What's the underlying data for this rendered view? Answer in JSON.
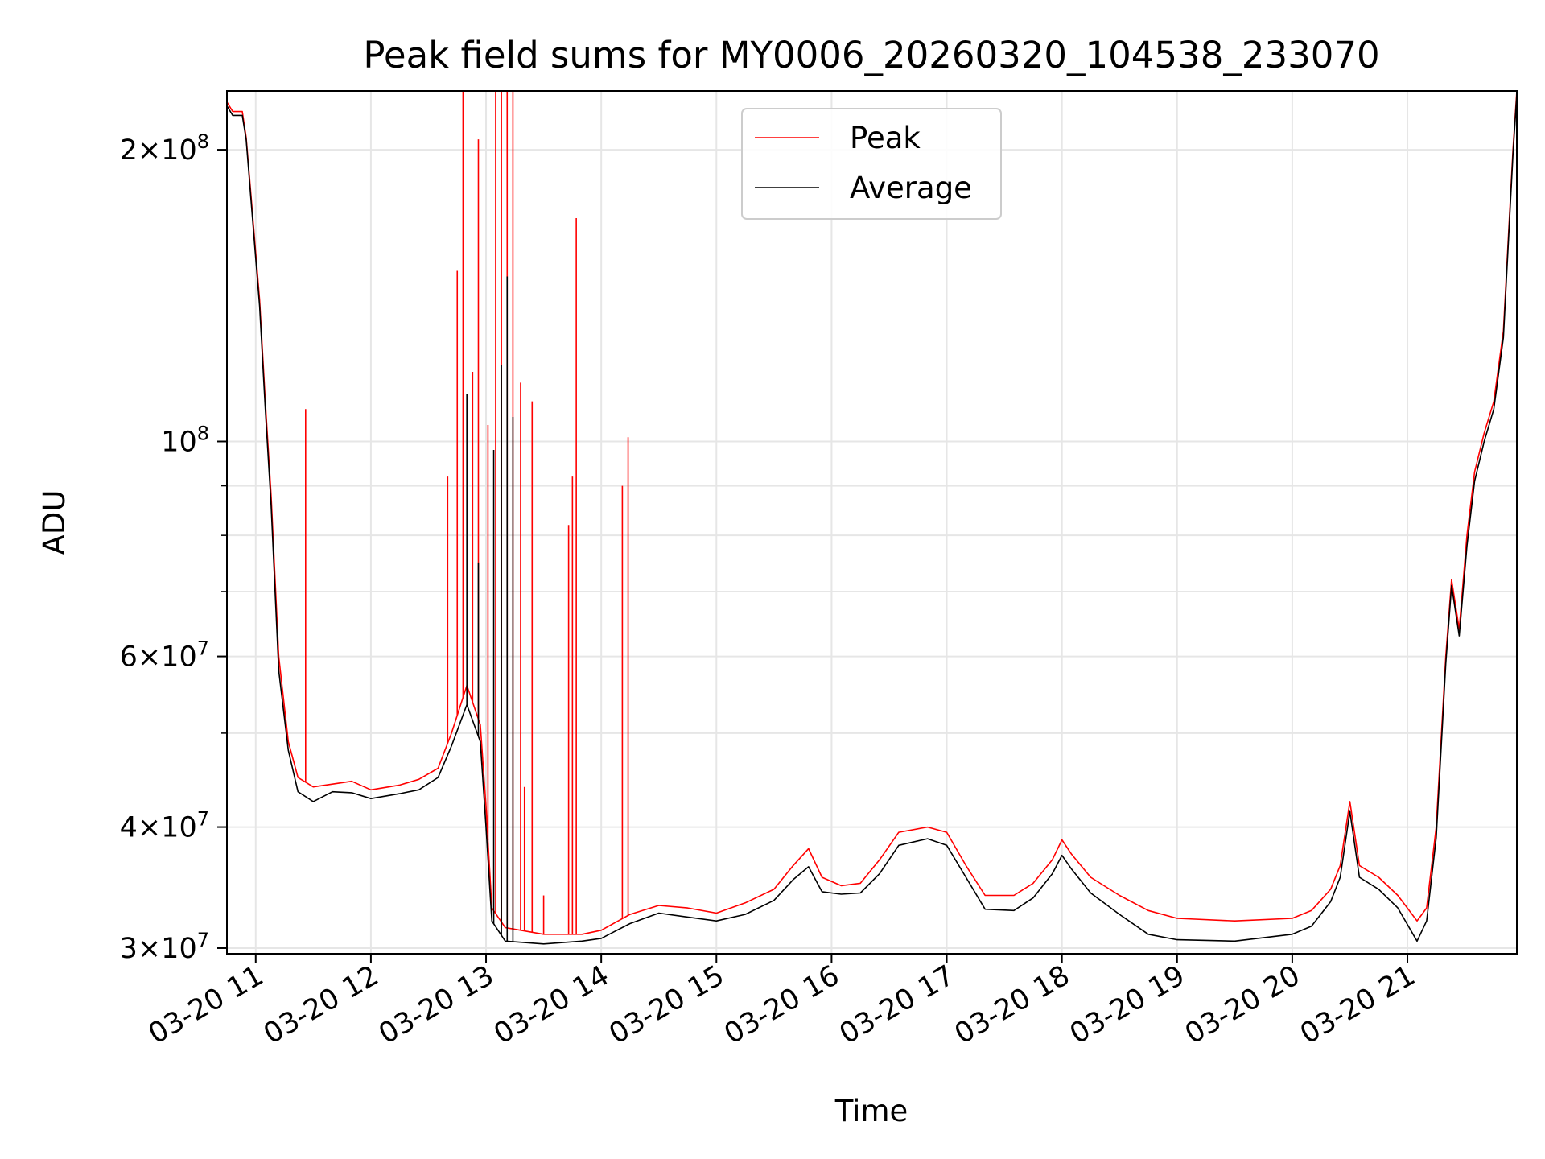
{
  "chart_data": {
    "type": "line",
    "title": "Peak field sums for MY0006_20260320_104538_233070",
    "xlabel": "Time",
    "ylabel": "ADU",
    "yscale": "log",
    "grid": true,
    "legend_position": "upper center",
    "xlim": [
      "03-20 10:45",
      "03-20 21:57"
    ],
    "ylim": [
      29600000,
      230000000
    ],
    "x_ticks": [
      {
        "value": "03-20 11:00",
        "label": "03-20 11"
      },
      {
        "value": "03-20 12:00",
        "label": "03-20 12"
      },
      {
        "value": "03-20 13:00",
        "label": "03-20 13"
      },
      {
        "value": "03-20 14:00",
        "label": "03-20 14"
      },
      {
        "value": "03-20 15:00",
        "label": "03-20 15"
      },
      {
        "value": "03-20 16:00",
        "label": "03-20 16"
      },
      {
        "value": "03-20 17:00",
        "label": "03-20 17"
      },
      {
        "value": "03-20 18:00",
        "label": "03-20 18"
      },
      {
        "value": "03-20 19:00",
        "label": "03-20 19"
      },
      {
        "value": "03-20 20:00",
        "label": "03-20 20"
      },
      {
        "value": "03-20 21:00",
        "label": "03-20 21"
      }
    ],
    "y_major_ticks": [
      {
        "value": 30000000,
        "mant": "3",
        "exp": "7"
      },
      {
        "value": 40000000,
        "mant": "4",
        "exp": "7"
      },
      {
        "value": 60000000,
        "mant": "6",
        "exp": "7"
      },
      {
        "value": 100000000,
        "mant": "",
        "exp": "8"
      },
      {
        "value": 200000000,
        "mant": "2",
        "exp": "8"
      }
    ],
    "y_minor_ticks": [
      50000000,
      70000000,
      80000000,
      90000000
    ],
    "series": [
      {
        "name": "Peak",
        "color": "#ff0000",
        "points": [
          [
            "03-20 10:45",
            224000000
          ],
          [
            "03-20 10:48",
            219000000
          ],
          [
            "03-20 10:53",
            219000000
          ],
          [
            "03-20 10:55",
            206000000
          ],
          [
            "03-20 10:58",
            175000000
          ],
          [
            "03-20 11:02",
            140000000
          ],
          [
            "03-20 11:05",
            110000000
          ],
          [
            "03-20 11:08",
            88000000
          ],
          [
            "03-20 11:12",
            60000000
          ],
          [
            "03-20 11:17",
            49000000
          ],
          [
            "03-20 11:22",
            45000000
          ],
          [
            "03-20 11:30",
            44000000
          ],
          [
            "03-20 11:40",
            44300000
          ],
          [
            "03-20 11:50",
            44600000
          ],
          [
            "03-20 12:00",
            43700000
          ],
          [
            "03-20 12:15",
            44200000
          ],
          [
            "03-20 12:25",
            44800000
          ],
          [
            "03-20 12:35",
            46000000
          ],
          [
            "03-20 12:42",
            50000000
          ],
          [
            "03-20 12:50",
            56000000
          ],
          [
            "03-20 12:57",
            51000000
          ],
          [
            "03-20 13:00",
            42000000
          ],
          [
            "03-20 13:03",
            33000000
          ],
          [
            "03-20 13:10",
            31500000
          ],
          [
            "03-20 13:30",
            31000000
          ],
          [
            "03-20 13:50",
            31000000
          ],
          [
            "03-20 14:00",
            31300000
          ],
          [
            "03-20 14:15",
            32500000
          ],
          [
            "03-20 14:30",
            33200000
          ],
          [
            "03-20 14:45",
            33000000
          ],
          [
            "03-20 15:00",
            32600000
          ],
          [
            "03-20 15:15",
            33400000
          ],
          [
            "03-20 15:30",
            34500000
          ],
          [
            "03-20 15:40",
            36500000
          ],
          [
            "03-20 15:48",
            38000000
          ],
          [
            "03-20 15:55",
            35500000
          ],
          [
            "03-20 16:05",
            34800000
          ],
          [
            "03-20 16:15",
            35000000
          ],
          [
            "03-20 16:25",
            37000000
          ],
          [
            "03-20 16:35",
            39500000
          ],
          [
            "03-20 16:50",
            40000000
          ],
          [
            "03-20 17:00",
            39500000
          ],
          [
            "03-20 17:10",
            36500000
          ],
          [
            "03-20 17:20",
            34000000
          ],
          [
            "03-20 17:35",
            34000000
          ],
          [
            "03-20 17:45",
            35000000
          ],
          [
            "03-20 17:55",
            37000000
          ],
          [
            "03-20 18:00",
            38800000
          ],
          [
            "03-20 18:05",
            37500000
          ],
          [
            "03-20 18:15",
            35500000
          ],
          [
            "03-20 18:30",
            34000000
          ],
          [
            "03-20 18:45",
            32800000
          ],
          [
            "03-20 19:00",
            32200000
          ],
          [
            "03-20 19:30",
            32000000
          ],
          [
            "03-20 20:00",
            32200000
          ],
          [
            "03-20 20:10",
            32800000
          ],
          [
            "03-20 20:20",
            34500000
          ],
          [
            "03-20 20:25",
            36500000
          ],
          [
            "03-20 20:30",
            42500000
          ],
          [
            "03-20 20:35",
            36500000
          ],
          [
            "03-20 20:45",
            35500000
          ],
          [
            "03-20 20:55",
            34000000
          ],
          [
            "03-20 21:05",
            32000000
          ],
          [
            "03-20 21:10",
            33000000
          ],
          [
            "03-20 21:15",
            40000000
          ],
          [
            "03-20 21:20",
            60000000
          ],
          [
            "03-20 21:23",
            72000000
          ],
          [
            "03-20 21:27",
            64000000
          ],
          [
            "03-20 21:31",
            80000000
          ],
          [
            "03-20 21:35",
            93000000
          ],
          [
            "03-20 21:40",
            102000000
          ],
          [
            "03-20 21:45",
            110000000
          ],
          [
            "03-20 21:50",
            130000000
          ],
          [
            "03-20 21:55",
            200000000
          ],
          [
            "03-20 21:57",
            230000000
          ]
        ],
        "spikes": [
          [
            "03-20 11:26",
            108000000
          ],
          [
            "03-20 12:40",
            92000000
          ],
          [
            "03-20 12:45",
            150000000
          ],
          [
            "03-20 12:48",
            230000000
          ],
          [
            "03-20 12:53",
            118000000
          ],
          [
            "03-20 12:56",
            205000000
          ],
          [
            "03-20 13:01",
            104000000
          ],
          [
            "03-20 13:05",
            230000000
          ],
          [
            "03-20 13:08",
            230000000
          ],
          [
            "03-20 13:11",
            230000000
          ],
          [
            "03-20 13:14",
            230000000
          ],
          [
            "03-20 13:18",
            115000000
          ],
          [
            "03-20 13:20",
            44000000
          ],
          [
            "03-20 13:24",
            110000000
          ],
          [
            "03-20 13:30",
            34000000
          ],
          [
            "03-20 13:43",
            82000000
          ],
          [
            "03-20 13:45",
            92000000
          ],
          [
            "03-20 13:47",
            170000000
          ],
          [
            "03-20 14:11",
            90000000
          ],
          [
            "03-20 14:14",
            101000000
          ]
        ]
      },
      {
        "name": "Average",
        "color": "#000000",
        "points": [
          [
            "03-20 10:45",
            222000000
          ],
          [
            "03-20 10:48",
            217000000
          ],
          [
            "03-20 10:53",
            217000000
          ],
          [
            "03-20 10:55",
            205000000
          ],
          [
            "03-20 10:58",
            173000000
          ],
          [
            "03-20 11:02",
            138000000
          ],
          [
            "03-20 11:05",
            108000000
          ],
          [
            "03-20 11:08",
            86000000
          ],
          [
            "03-20 11:12",
            58000000
          ],
          [
            "03-20 11:17",
            48000000
          ],
          [
            "03-20 11:22",
            43500000
          ],
          [
            "03-20 11:30",
            42500000
          ],
          [
            "03-20 11:40",
            43500000
          ],
          [
            "03-20 11:50",
            43400000
          ],
          [
            "03-20 12:00",
            42800000
          ],
          [
            "03-20 12:15",
            43300000
          ],
          [
            "03-20 12:25",
            43700000
          ],
          [
            "03-20 12:35",
            45000000
          ],
          [
            "03-20 12:42",
            48500000
          ],
          [
            "03-20 12:50",
            53500000
          ],
          [
            "03-20 12:57",
            49000000
          ],
          [
            "03-20 13:00",
            40000000
          ],
          [
            "03-20 13:03",
            32000000
          ],
          [
            "03-20 13:10",
            30500000
          ],
          [
            "03-20 13:30",
            30300000
          ],
          [
            "03-20 13:50",
            30500000
          ],
          [
            "03-20 14:00",
            30700000
          ],
          [
            "03-20 14:15",
            31800000
          ],
          [
            "03-20 14:30",
            32600000
          ],
          [
            "03-20 14:45",
            32300000
          ],
          [
            "03-20 15:00",
            32000000
          ],
          [
            "03-20 15:15",
            32500000
          ],
          [
            "03-20 15:30",
            33600000
          ],
          [
            "03-20 15:40",
            35300000
          ],
          [
            "03-20 15:48",
            36400000
          ],
          [
            "03-20 15:55",
            34300000
          ],
          [
            "03-20 16:05",
            34100000
          ],
          [
            "03-20 16:15",
            34200000
          ],
          [
            "03-20 16:25",
            35800000
          ],
          [
            "03-20 16:35",
            38300000
          ],
          [
            "03-20 16:50",
            38900000
          ],
          [
            "03-20 17:00",
            38300000
          ],
          [
            "03-20 17:10",
            35500000
          ],
          [
            "03-20 17:20",
            32900000
          ],
          [
            "03-20 17:35",
            32800000
          ],
          [
            "03-20 17:45",
            33800000
          ],
          [
            "03-20 17:55",
            35800000
          ],
          [
            "03-20 18:00",
            37400000
          ],
          [
            "03-20 18:05",
            36200000
          ],
          [
            "03-20 18:15",
            34200000
          ],
          [
            "03-20 18:30",
            32500000
          ],
          [
            "03-20 18:45",
            31000000
          ],
          [
            "03-20 19:00",
            30600000
          ],
          [
            "03-20 19:30",
            30500000
          ],
          [
            "03-20 20:00",
            31000000
          ],
          [
            "03-20 20:10",
            31600000
          ],
          [
            "03-20 20:20",
            33500000
          ],
          [
            "03-20 20:25",
            35500000
          ],
          [
            "03-20 20:30",
            41500000
          ],
          [
            "03-20 20:35",
            35500000
          ],
          [
            "03-20 20:45",
            34500000
          ],
          [
            "03-20 20:55",
            33000000
          ],
          [
            "03-20 21:05",
            30500000
          ],
          [
            "03-20 21:10",
            32000000
          ],
          [
            "03-20 21:15",
            39000000
          ],
          [
            "03-20 21:20",
            59000000
          ],
          [
            "03-20 21:23",
            71000000
          ],
          [
            "03-20 21:27",
            63000000
          ],
          [
            "03-20 21:31",
            78000000
          ],
          [
            "03-20 21:35",
            91000000
          ],
          [
            "03-20 21:40",
            100000000
          ],
          [
            "03-20 21:45",
            108000000
          ],
          [
            "03-20 21:50",
            128000000
          ],
          [
            "03-20 21:55",
            198000000
          ],
          [
            "03-20 21:57",
            228000000
          ]
        ],
        "spikes": [
          [
            "03-20 12:50",
            112000000
          ],
          [
            "03-20 12:56",
            75000000
          ],
          [
            "03-20 13:04",
            98000000
          ],
          [
            "03-20 13:08",
            120000000
          ],
          [
            "03-20 13:11",
            148000000
          ],
          [
            "03-20 13:14",
            106000000
          ]
        ]
      }
    ]
  }
}
